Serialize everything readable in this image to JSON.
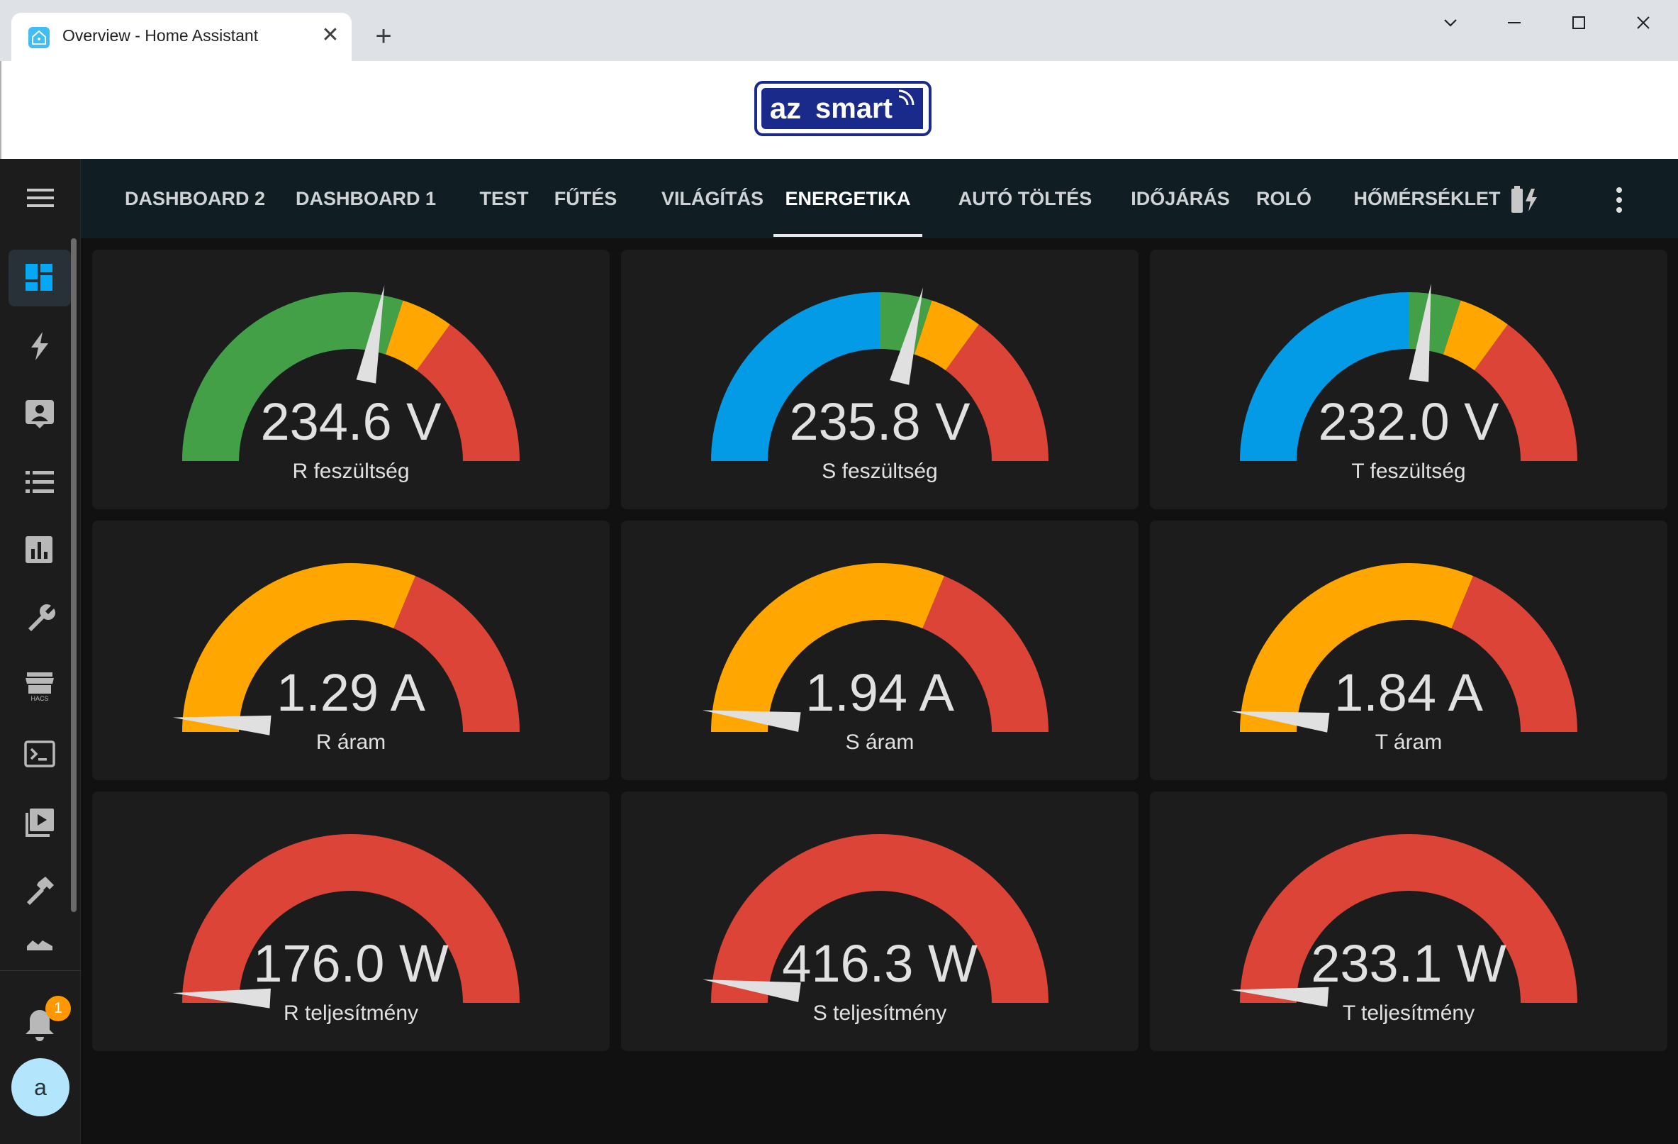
{
  "browser": {
    "tab_title": "Overview - Home Assistant",
    "close_glyph": "✕",
    "new_tab_glyph": "+",
    "controls": {
      "tab_search": "⌄",
      "minimize": "—",
      "maximize": "☐",
      "close": "✕"
    }
  },
  "logo": {
    "left": "az",
    "right": "smart"
  },
  "sidebar": {
    "items": [
      {
        "icon": "dashboard-icon",
        "active": true
      },
      {
        "icon": "lightning-icon"
      },
      {
        "icon": "contact-card-icon"
      },
      {
        "icon": "list-icon"
      },
      {
        "icon": "bar-chart-icon"
      },
      {
        "icon": "wrench-icon"
      },
      {
        "icon": "hacs-store-icon"
      },
      {
        "icon": "terminal-icon"
      },
      {
        "icon": "media-play-icon"
      },
      {
        "icon": "hammer-icon"
      },
      {
        "icon": "more-partial-icon"
      }
    ],
    "notification_count": "1",
    "avatar_letter": "a"
  },
  "header": {
    "tabs": [
      {
        "label": "DASHBOARD 2"
      },
      {
        "label": "DASHBOARD 1"
      },
      {
        "label": "TEST"
      },
      {
        "label": "FŰTÉS"
      },
      {
        "label": "VILÁGÍTÁS"
      },
      {
        "label": "ENERGETIKA",
        "active": true
      },
      {
        "label": "AUTÓ TÖLTÉS"
      },
      {
        "label": "IDŐJÁRÁS"
      },
      {
        "label": "ROLÓ"
      },
      {
        "label": "HŐMÉRSÉKLET"
      }
    ],
    "extra_tab_icon": "battery-charging-icon",
    "overflow_icon": "dots-vertical-icon"
  },
  "colors": {
    "blue": "#039be5",
    "green": "#43a047",
    "orange": "#ffa600",
    "red": "#db4437",
    "needle": "#e0e0e0"
  },
  "gauges": [
    {
      "name": "R feszültség",
      "value": "234.6 V",
      "fraction": 0.56,
      "segments": [
        [
          "blue",
          0,
          0.5
        ],
        [
          "green",
          0,
          0.5,
          0.6
        ],
        [
          "orange",
          0.6,
          0.7
        ],
        [
          "red",
          0.7,
          1
        ]
      ]
    },
    {
      "name": "S feszültség",
      "value": "235.8 V",
      "fraction": 0.578,
      "segments": [
        [
          "blue",
          0,
          0.5
        ],
        [
          "green",
          0.5,
          0.6
        ],
        [
          "orange",
          0.6,
          0.7
        ],
        [
          "red",
          0.7,
          1
        ]
      ]
    },
    {
      "name": "T feszültség",
      "value": "232.0 V",
      "fraction": 0.54,
      "segments": [
        [
          "blue",
          0,
          0.5
        ],
        [
          "green",
          0.5,
          0.6
        ],
        [
          "orange",
          0.6,
          0.7
        ],
        [
          "red",
          0.7,
          1
        ]
      ]
    },
    {
      "name": "R áram",
      "value": "1.29 A",
      "fraction": 0.0258,
      "segments": [
        [
          "orange",
          0,
          0.625
        ],
        [
          "red",
          0.625,
          1
        ]
      ]
    },
    {
      "name": "S áram",
      "value": "1.94 A",
      "fraction": 0.0388,
      "segments": [
        [
          "orange",
          0,
          0.625
        ],
        [
          "red",
          0.625,
          1
        ]
      ]
    },
    {
      "name": "T áram",
      "value": "1.84 A",
      "fraction": 0.0368,
      "segments": [
        [
          "orange",
          0,
          0.625
        ],
        [
          "red",
          0.625,
          1
        ]
      ]
    },
    {
      "name": "R teljesítmény",
      "value": "176.0 W",
      "fraction": 0.0176,
      "segments": [
        [
          "red",
          0,
          1
        ]
      ]
    },
    {
      "name": "S teljesítmény",
      "value": "416.3 W",
      "fraction": 0.0416,
      "segments": [
        [
          "red",
          0,
          1
        ]
      ]
    },
    {
      "name": "T teljesítmény",
      "value": "233.1 W",
      "fraction": 0.0233,
      "segments": [
        [
          "red",
          0,
          1
        ]
      ]
    }
  ]
}
